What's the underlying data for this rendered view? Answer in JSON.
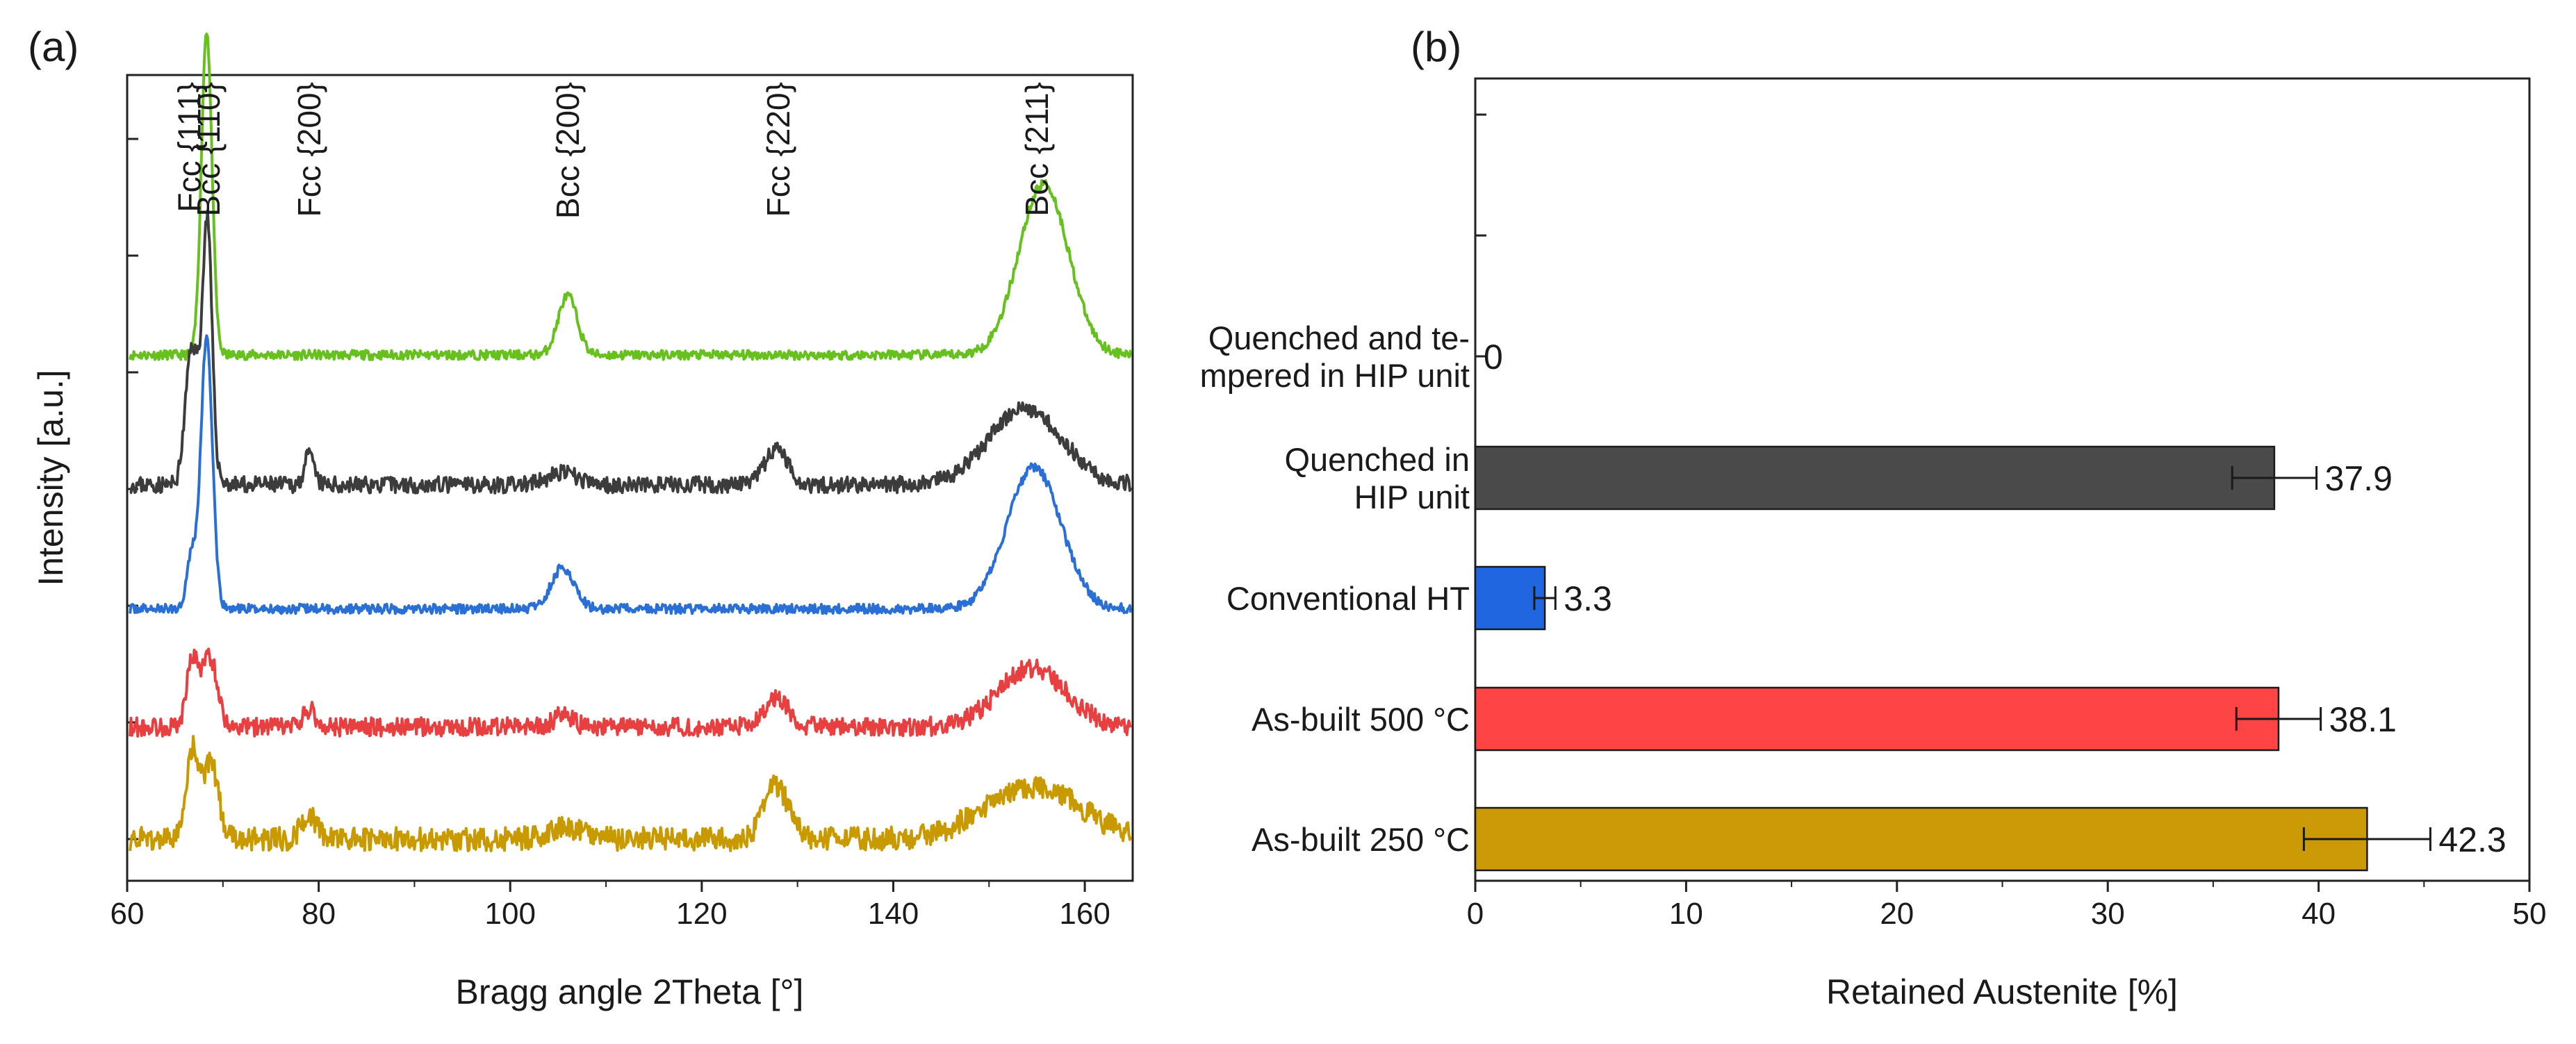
{
  "chart_data": [
    {
      "type": "line",
      "panel_label": "(a)",
      "xlabel": "Bragg angle 2Theta [°]",
      "ylabel": "Intensity [a.u.]",
      "xlim": [
        60,
        165
      ],
      "xticks": [
        60,
        80,
        100,
        120,
        140,
        160
      ],
      "yticks_labeled": false,
      "peak_labels": [
        {
          "text": "Fcc {111}",
          "x": 66.5
        },
        {
          "text": "Bcc {110}",
          "x": 68.5
        },
        {
          "text": "Fcc {200}",
          "x": 79
        },
        {
          "text": "Bcc {200}",
          "x": 106
        },
        {
          "text": "Fcc {220}",
          "x": 128
        },
        {
          "text": "Bcc {211}",
          "x": 155
        }
      ],
      "series": [
        {
          "name": "Quenched and tempered in HIP unit",
          "color": "#66c01e",
          "offset": 4.1,
          "noise": 0.04,
          "seed": 11,
          "peaks": [
            {
              "x": 68.3,
              "h": 2.75,
              "w": 0.55
            },
            {
              "x": 106.0,
              "h": 0.5,
              "w": 1.0
            },
            {
              "x": 155.7,
              "h": 1.45,
              "w": 2.6
            }
          ]
        },
        {
          "name": "Quenched in HIP unit",
          "color": "#3c3c3c",
          "offset": 3.0,
          "noise": 0.07,
          "seed": 23,
          "peaks": [
            {
              "x": 66.6,
              "h": 0.85,
              "w": 0.6
            },
            {
              "x": 67.8,
              "h": 0.7,
              "w": 0.9
            },
            {
              "x": 68.4,
              "h": 1.7,
              "w": 0.45
            },
            {
              "x": 79.0,
              "h": 0.25,
              "w": 0.5
            },
            {
              "x": 105.5,
              "h": 0.1,
              "w": 1.5
            },
            {
              "x": 127.8,
              "h": 0.3,
              "w": 1.2
            },
            {
              "x": 153.8,
              "h": 0.65,
              "w": 3.8
            }
          ]
        },
        {
          "name": "Conventional HT",
          "color": "#2a6fd6",
          "offset": 1.95,
          "noise": 0.04,
          "seed": 37,
          "peaks": [
            {
              "x": 66.7,
              "h": 0.45,
              "w": 0.5
            },
            {
              "x": 68.3,
              "h": 2.3,
              "w": 0.6
            },
            {
              "x": 105.5,
              "h": 0.35,
              "w": 1.2
            },
            {
              "x": 154.7,
              "h": 1.2,
              "w": 2.8
            }
          ]
        },
        {
          "name": "As-built 500 °C",
          "color": "#e84040",
          "offset": 0.95,
          "noise": 0.08,
          "seed": 53,
          "peaks": [
            {
              "x": 66.8,
              "h": 0.55,
              "w": 0.6
            },
            {
              "x": 68.6,
              "h": 0.6,
              "w": 0.8
            },
            {
              "x": 79.0,
              "h": 0.15,
              "w": 0.6
            },
            {
              "x": 105.5,
              "h": 0.1,
              "w": 1.0
            },
            {
              "x": 127.8,
              "h": 0.25,
              "w": 1.3
            },
            {
              "x": 154.5,
              "h": 0.5,
              "w": 3.5
            }
          ]
        },
        {
          "name": "As-built 250 °C",
          "color": "#c99a00",
          "offset": 0.0,
          "noise": 0.1,
          "seed": 71,
          "peaks": [
            {
              "x": 66.8,
              "h": 0.75,
              "w": 0.6
            },
            {
              "x": 68.7,
              "h": 0.65,
              "w": 0.8
            },
            {
              "x": 79.0,
              "h": 0.2,
              "w": 0.8
            },
            {
              "x": 106.0,
              "h": 0.1,
              "w": 2.0
            },
            {
              "x": 127.8,
              "h": 0.45,
              "w": 1.3
            },
            {
              "x": 154.5,
              "h": 0.45,
              "w": 5.0
            }
          ]
        }
      ]
    },
    {
      "type": "bar",
      "orientation": "horizontal",
      "panel_label": "(b)",
      "xlabel": "Retained Austenite [%]",
      "xlim": [
        0,
        50
      ],
      "xticks": [
        0,
        10,
        20,
        30,
        40,
        50
      ],
      "categories": [
        {
          "lines": [
            "Quenched and te-",
            "mpered in HIP unit"
          ]
        },
        {
          "lines": [
            "Quenched in",
            "HIP unit"
          ]
        },
        {
          "lines": [
            "Conventional HT"
          ]
        },
        {
          "lines": [
            "As-built 500 °C"
          ]
        },
        {
          "lines": [
            "As-built 250 °C"
          ]
        }
      ],
      "values": [
        0,
        37.9,
        3.3,
        38.1,
        42.3
      ],
      "value_labels": [
        "0",
        "37.9",
        "3.3",
        "38.1",
        "42.3"
      ],
      "errors": [
        0,
        2.0,
        0.5,
        2.0,
        3.0
      ],
      "colors": [
        "#ffffff",
        "#4a4a4a",
        "#1f66e0",
        "#ff4444",
        "#cc9a06"
      ]
    }
  ]
}
